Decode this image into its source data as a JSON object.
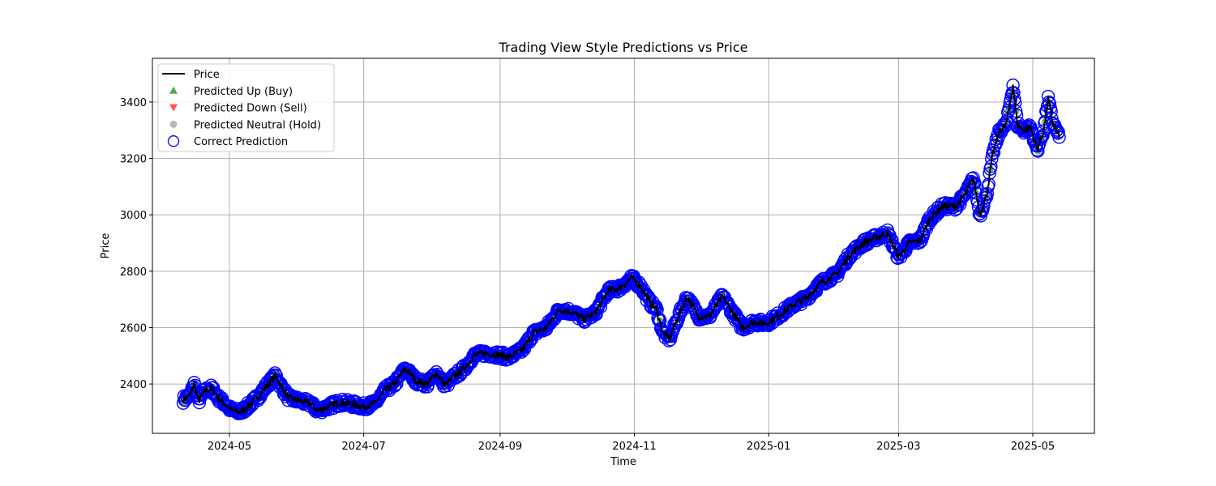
{
  "chart_data": {
    "type": "line",
    "title": "Trading View Style Predictions vs Price",
    "xlabel": "Time",
    "ylabel": "Price",
    "x_ticks": [
      "2024-05",
      "2024-07",
      "2024-09",
      "2024-11",
      "2025-01",
      "2025-03",
      "2025-05"
    ],
    "y_ticks": [
      2400,
      2600,
      2800,
      3000,
      3200,
      3400
    ],
    "xlim": [
      "2024-03-27",
      "2025-05-29"
    ],
    "ylim": [
      2225,
      3555
    ],
    "grid": true,
    "legend_position": "upper-left",
    "legend": [
      {
        "label": "Price",
        "marker": "line",
        "color": "#000000"
      },
      {
        "label": "Predicted Up (Buy)",
        "marker": "triangle-up",
        "color": "#2ca02c"
      },
      {
        "label": "Predicted Down (Sell)",
        "marker": "triangle-down",
        "color": "#ff3333"
      },
      {
        "label": "Predicted Neutral (Hold)",
        "marker": "circle",
        "color": "#aaaaaa"
      },
      {
        "label": "Correct Prediction",
        "marker": "ring",
        "color": "#0000ff"
      }
    ],
    "series": [
      {
        "name": "Price",
        "points": [
          [
            "2024-04-10",
            2345
          ],
          [
            "2024-04-13",
            2360
          ],
          [
            "2024-04-15",
            2400
          ],
          [
            "2024-04-17",
            2340
          ],
          [
            "2024-04-20",
            2375
          ],
          [
            "2024-04-23",
            2385
          ],
          [
            "2024-04-26",
            2350
          ],
          [
            "2024-04-29",
            2330
          ],
          [
            "2024-05-02",
            2305
          ],
          [
            "2024-05-06",
            2300
          ],
          [
            "2024-05-10",
            2325
          ],
          [
            "2024-05-14",
            2355
          ],
          [
            "2024-05-18",
            2395
          ],
          [
            "2024-05-22",
            2430
          ],
          [
            "2024-05-25",
            2385
          ],
          [
            "2024-05-28",
            2350
          ],
          [
            "2024-06-02",
            2340
          ],
          [
            "2024-06-07",
            2330
          ],
          [
            "2024-06-10",
            2305
          ],
          [
            "2024-06-15",
            2320
          ],
          [
            "2024-06-20",
            2335
          ],
          [
            "2024-06-25",
            2330
          ],
          [
            "2024-07-01",
            2320
          ],
          [
            "2024-07-06",
            2330
          ],
          [
            "2024-07-11",
            2380
          ],
          [
            "2024-07-15",
            2400
          ],
          [
            "2024-07-20",
            2455
          ],
          [
            "2024-07-25",
            2410
          ],
          [
            "2024-07-30",
            2400
          ],
          [
            "2024-08-03",
            2440
          ],
          [
            "2024-08-07",
            2395
          ],
          [
            "2024-08-11",
            2425
          ],
          [
            "2024-08-15",
            2450
          ],
          [
            "2024-08-20",
            2500
          ],
          [
            "2024-08-25",
            2510
          ],
          [
            "2024-08-30",
            2505
          ],
          [
            "2024-09-05",
            2495
          ],
          [
            "2024-09-11",
            2520
          ],
          [
            "2024-09-16",
            2580
          ],
          [
            "2024-09-22",
            2600
          ],
          [
            "2024-09-28",
            2665
          ],
          [
            "2024-10-04",
            2655
          ],
          [
            "2024-10-09",
            2630
          ],
          [
            "2024-10-14",
            2650
          ],
          [
            "2024-10-20",
            2730
          ],
          [
            "2024-10-25",
            2740
          ],
          [
            "2024-10-31",
            2775
          ],
          [
            "2024-11-04",
            2745
          ],
          [
            "2024-11-08",
            2690
          ],
          [
            "2024-11-11",
            2665
          ],
          [
            "2024-11-14",
            2580
          ],
          [
            "2024-11-17",
            2560
          ],
          [
            "2024-11-21",
            2640
          ],
          [
            "2024-11-25",
            2710
          ],
          [
            "2024-11-30",
            2640
          ],
          [
            "2024-12-05",
            2640
          ],
          [
            "2024-12-11",
            2710
          ],
          [
            "2024-12-16",
            2650
          ],
          [
            "2024-12-20",
            2600
          ],
          [
            "2024-12-25",
            2620
          ],
          [
            "2024-12-31",
            2615
          ],
          [
            "2025-01-05",
            2640
          ],
          [
            "2025-01-12",
            2680
          ],
          [
            "2025-01-18",
            2705
          ],
          [
            "2025-01-25",
            2760
          ],
          [
            "2025-02-01",
            2790
          ],
          [
            "2025-02-07",
            2860
          ],
          [
            "2025-02-13",
            2900
          ],
          [
            "2025-02-19",
            2920
          ],
          [
            "2025-02-24",
            2935
          ],
          [
            "2025-03-01",
            2850
          ],
          [
            "2025-03-06",
            2900
          ],
          [
            "2025-03-11",
            2910
          ],
          [
            "2025-03-15",
            2985
          ],
          [
            "2025-03-21",
            3030
          ],
          [
            "2025-03-27",
            3030
          ],
          [
            "2025-04-01",
            3080
          ],
          [
            "2025-04-04",
            3130
          ],
          [
            "2025-04-07",
            3000
          ],
          [
            "2025-04-10",
            3070
          ],
          [
            "2025-04-13",
            3220
          ],
          [
            "2025-04-16",
            3300
          ],
          [
            "2025-04-19",
            3320
          ],
          [
            "2025-04-22",
            3460
          ],
          [
            "2025-04-24",
            3320
          ],
          [
            "2025-04-27",
            3300
          ],
          [
            "2025-04-30",
            3310
          ],
          [
            "2025-05-03",
            3230
          ],
          [
            "2025-05-06",
            3300
          ],
          [
            "2025-05-08",
            3410
          ],
          [
            "2025-05-10",
            3330
          ],
          [
            "2025-05-13",
            3275
          ]
        ]
      }
    ]
  }
}
